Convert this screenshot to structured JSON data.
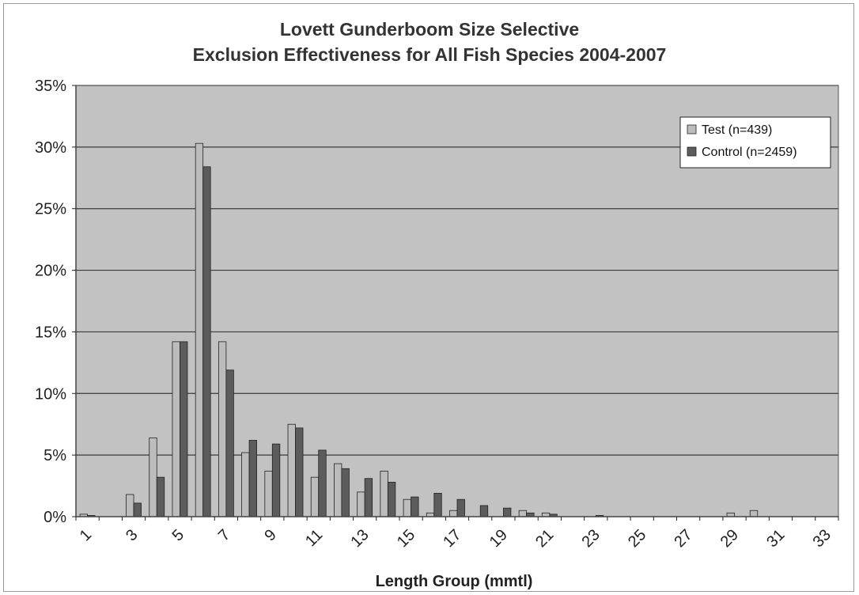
{
  "chart_data": {
    "type": "bar",
    "title": "Lovett Gunderboom Size Selective",
    "subtitle": "Exclusion Effectiveness for All Fish Species 2004-2007",
    "xlabel": "Length Group (mmtl)",
    "ylabel": "",
    "ylim": [
      0,
      35
    ],
    "y_tick_labels": [
      "0%",
      "5%",
      "10%",
      "15%",
      "20%",
      "25%",
      "30%",
      "35%"
    ],
    "y_ticks": [
      0,
      5,
      10,
      15,
      20,
      25,
      30,
      35
    ],
    "categories": [
      "1",
      "2",
      "3",
      "4",
      "5",
      "6",
      "7",
      "8",
      "9",
      "10",
      "11",
      "12",
      "13",
      "14",
      "15",
      "16",
      "17",
      "18",
      "19",
      "20",
      "21",
      "22",
      "23",
      "24",
      "25",
      "26",
      "27",
      "28",
      "29",
      "30",
      "31",
      "32",
      "33"
    ],
    "x_tick_labels_shown": [
      "1",
      "3",
      "5",
      "7",
      "9",
      "11",
      "13",
      "15",
      "17",
      "19",
      "21",
      "23",
      "25",
      "27",
      "29",
      "31",
      "33"
    ],
    "grid": true,
    "legend_position": "top-right",
    "series": [
      {
        "name": "Test (n=439)",
        "color": "#bcbcbc",
        "values": [
          0.2,
          0,
          1.8,
          6.4,
          14.2,
          30.3,
          14.2,
          5.2,
          3.7,
          7.5,
          3.2,
          4.3,
          2.0,
          3.7,
          1.4,
          0.3,
          0.5,
          0,
          0,
          0.5,
          0.3,
          0,
          0,
          0,
          0,
          0,
          0,
          0,
          0.3,
          0.5,
          0,
          0,
          0
        ]
      },
      {
        "name": "Control (n=2459)",
        "color": "#5c5c5c",
        "values": [
          0.1,
          0,
          1.1,
          3.2,
          14.2,
          28.4,
          11.9,
          6.2,
          5.9,
          7.2,
          5.4,
          3.9,
          3.1,
          2.8,
          1.6,
          1.9,
          1.4,
          0.9,
          0.7,
          0.3,
          0.2,
          0,
          0.1,
          0,
          0,
          0,
          0,
          0,
          0,
          0,
          0,
          0,
          0
        ]
      }
    ]
  },
  "colors": {
    "plot_background": "#c2c2c2",
    "gridline": "#3a3a3a",
    "bar_outline": "#222222"
  }
}
